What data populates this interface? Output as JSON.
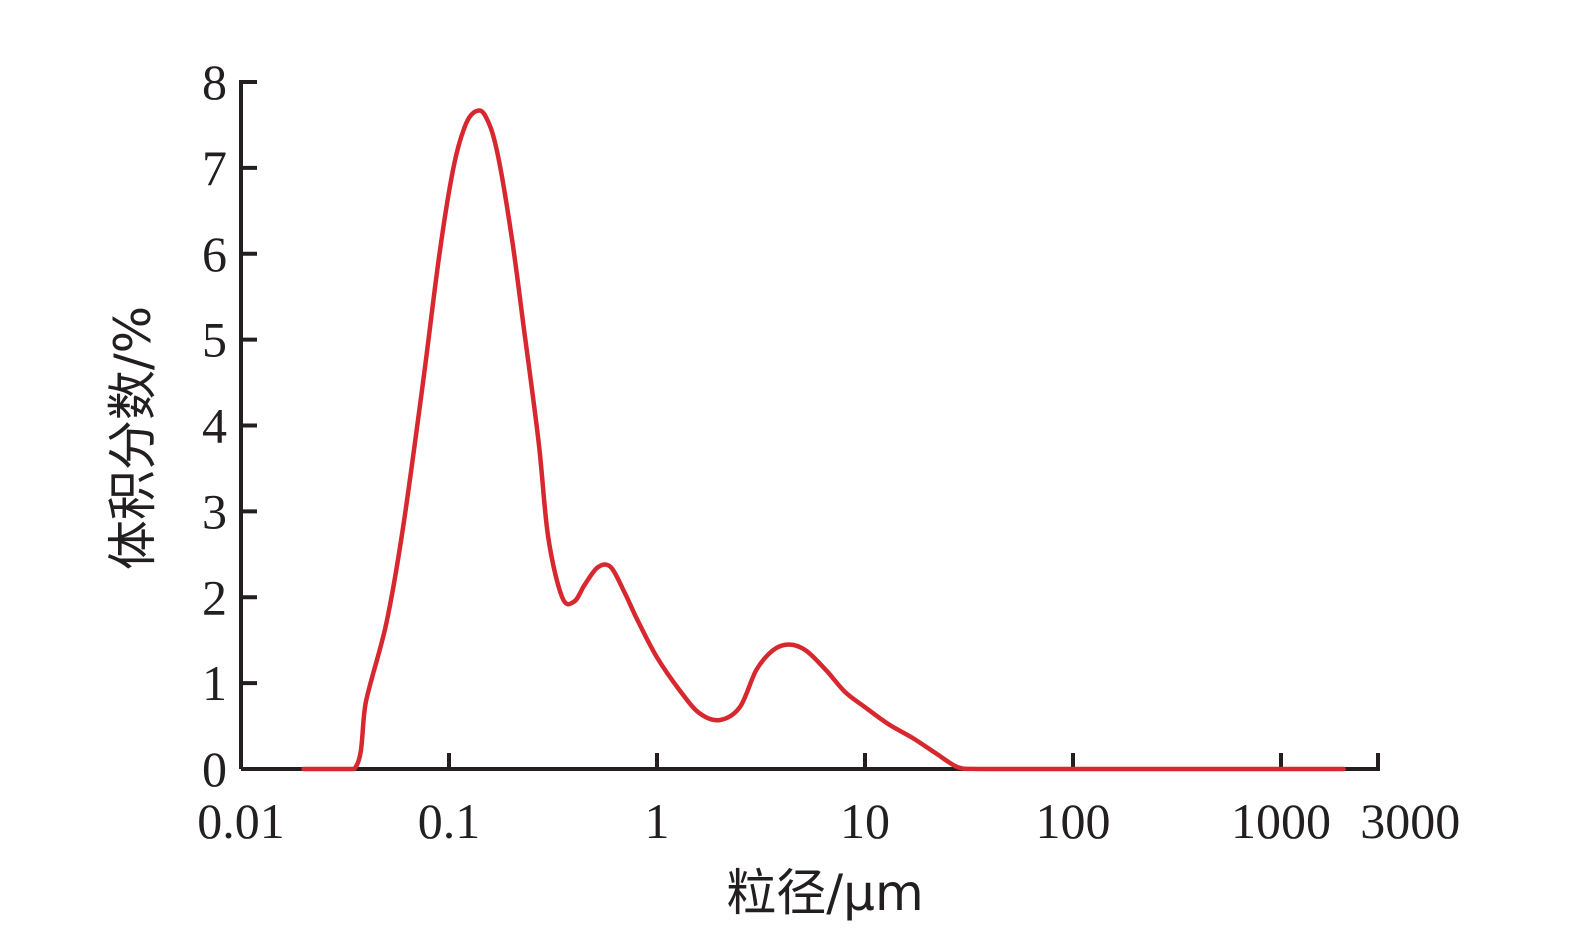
{
  "chart_data": {
    "type": "line",
    "xscale": "log",
    "xlim": [
      0.01,
      3000
    ],
    "ylim": [
      0,
      8
    ],
    "xlabel": "粒径/μm",
    "ylabel": "体积分数/%",
    "xticks": [
      {
        "value": 0.01,
        "label": "0.01"
      },
      {
        "value": 0.1,
        "label": "0.1"
      },
      {
        "value": 1,
        "label": "1"
      },
      {
        "value": 10,
        "label": "10"
      },
      {
        "value": 100,
        "label": "100"
      },
      {
        "value": 1000,
        "label": "1000"
      },
      {
        "value": 3000,
        "label": "3000"
      }
    ],
    "yticks": [
      {
        "value": 0,
        "label": "0"
      },
      {
        "value": 1,
        "label": "1"
      },
      {
        "value": 2,
        "label": "2"
      },
      {
        "value": 3,
        "label": "3"
      },
      {
        "value": 4,
        "label": "4"
      },
      {
        "value": 5,
        "label": "5"
      },
      {
        "value": 6,
        "label": "6"
      },
      {
        "value": 7,
        "label": "7"
      },
      {
        "value": 8,
        "label": "8"
      }
    ],
    "grid": false,
    "series": [
      {
        "color": "#d7282f",
        "x": [
          0.02,
          0.035,
          0.04,
          0.05,
          0.06,
          0.075,
          0.09,
          0.105,
          0.12,
          0.135,
          0.15,
          0.17,
          0.2,
          0.23,
          0.27,
          0.3,
          0.35,
          0.4,
          0.45,
          0.52,
          0.6,
          0.7,
          0.8,
          1.0,
          1.3,
          1.6,
          2.0,
          2.5,
          3.0,
          3.6,
          4.3,
          5.2,
          6.5,
          8.0,
          10.0,
          13.0,
          17.0,
          22.0,
          28.0,
          35.0,
          100.0,
          1000.0,
          2000.0
        ],
        "y": [
          0.0,
          0.0,
          0.8,
          1.7,
          2.8,
          4.5,
          6.0,
          7.0,
          7.5,
          7.66,
          7.6,
          7.2,
          6.2,
          5.1,
          3.8,
          2.7,
          2.0,
          1.95,
          2.15,
          2.35,
          2.35,
          2.05,
          1.75,
          1.3,
          0.9,
          0.65,
          0.57,
          0.72,
          1.15,
          1.38,
          1.45,
          1.38,
          1.15,
          0.9,
          0.72,
          0.52,
          0.36,
          0.18,
          0.02,
          0.0,
          0.0,
          0.0,
          0.0
        ]
      }
    ]
  }
}
